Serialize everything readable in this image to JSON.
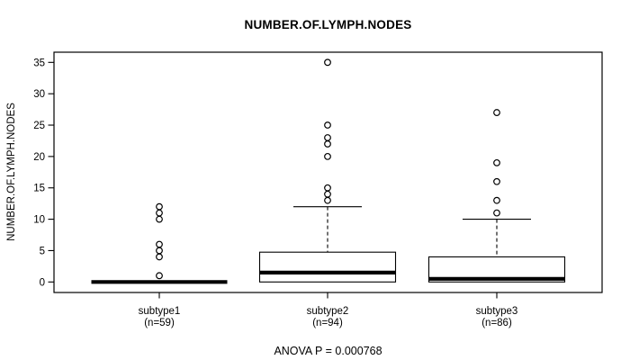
{
  "chart_data": {
    "type": "boxplot",
    "title": "NUMBER.OF.LYMPH.NODES",
    "ylabel": "NUMBER.OF.LYMPH.NODES",
    "xlabel": "",
    "yticks": [
      0,
      5,
      10,
      15,
      20,
      25,
      30,
      35
    ],
    "ylim": [
      -1.7,
      36.6
    ],
    "grid": false,
    "legend": "none",
    "annotation": "ANOVA P = 0.000768",
    "colors": {
      "stroke": "#000000",
      "fill": "#ffffff",
      "text": "#000000"
    },
    "groups": [
      {
        "label": "subtype1",
        "n_label": "(n=59)",
        "n": 59,
        "stats": {
          "whisker_low": 0,
          "q1": 0,
          "median": 0,
          "q3": 0,
          "whisker_high": 0
        },
        "outliers": [
          1,
          4,
          5,
          6,
          10,
          11,
          12
        ]
      },
      {
        "label": "subtype2",
        "n_label": "(n=94)",
        "n": 94,
        "stats": {
          "whisker_low": 0,
          "q1": 0,
          "median": 1.5,
          "q3": 4.75,
          "whisker_high": 12
        },
        "outliers": [
          13,
          14,
          15,
          20,
          22,
          23,
          25,
          35
        ]
      },
      {
        "label": "subtype3",
        "n_label": "(n=86)",
        "n": 86,
        "stats": {
          "whisker_low": 0,
          "q1": 0,
          "median": 0.5,
          "q3": 4,
          "whisker_high": 10
        },
        "outliers": [
          11,
          13,
          16,
          19,
          27
        ]
      }
    ]
  }
}
